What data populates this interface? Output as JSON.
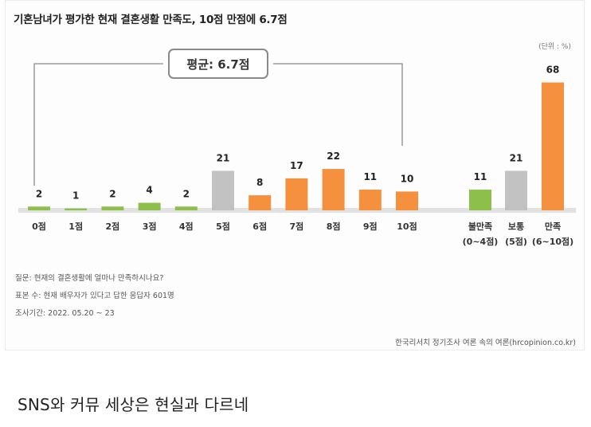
{
  "title": "기혼남녀가 평가한 현재 결혼생활 만족도, 10점 만점에 6.7점",
  "unit": "(단위 : %)",
  "average_label": "평균: 6.7점",
  "notes": [
    "질문:  현재의 결혼생활에 얼마나 만족하시나요?",
    "표본 수: 현재 배우자가 있다고 답한 응답자 601명",
    "조사기간: 2022. 05.20 ~ 23"
  ],
  "source": "한국리서치 정기조사 여론 속의 여론(hrcopinion.co.kr)",
  "caption": "SNS와 커뮤 세상은 현실과 다르네",
  "colors": {
    "green": "#8cc04b",
    "gray": "#c2c2c2",
    "orange": "#f5913e"
  },
  "chart_data": {
    "type": "bar",
    "title": "기혼남녀가 평가한 현재 결혼생활 만족도, 10점 만점에 6.7점",
    "ylabel": "",
    "xlabel": "",
    "ylim": [
      0,
      70
    ],
    "categories": [
      "0점",
      "1점",
      "2점",
      "3점",
      "4점",
      "5점",
      "6점",
      "7점",
      "8점",
      "9점",
      "10점"
    ],
    "values": [
      2,
      1,
      2,
      4,
      2,
      21,
      8,
      17,
      22,
      11,
      10
    ],
    "bar_colors": [
      "green",
      "green",
      "green",
      "green",
      "green",
      "gray",
      "orange",
      "orange",
      "orange",
      "orange",
      "orange"
    ],
    "summary_categories": [
      [
        "불만족",
        "(0~4점)"
      ],
      [
        "보통",
        "(5점)"
      ],
      [
        "만족",
        "(6~10점)"
      ]
    ],
    "summary_values": [
      11,
      21,
      68
    ],
    "summary_colors": [
      "green",
      "gray",
      "orange"
    ]
  }
}
